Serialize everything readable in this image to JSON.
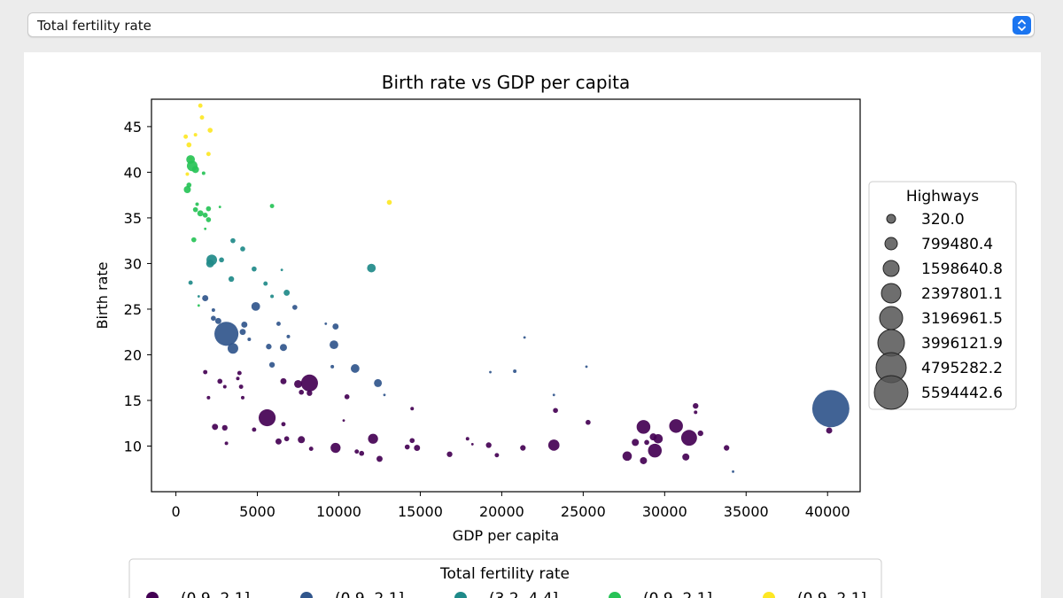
{
  "selector": {
    "selected": "Total fertility rate"
  },
  "colors": {
    "purple": "#440154",
    "blue": "#31568c",
    "teal": "#1f8a89",
    "green": "#27c357",
    "yellow": "#fde725",
    "accent": "#1b75f0"
  },
  "chart_data": {
    "type": "scatter",
    "title": "Birth rate vs GDP per capita",
    "xlabel": "GDP per capita",
    "ylabel": "Birth rate",
    "xlim": [
      -1500,
      42000
    ],
    "ylim": [
      5,
      48
    ],
    "xticks": [
      0,
      5000,
      10000,
      15000,
      20000,
      25000,
      30000,
      35000,
      40000
    ],
    "yticks": [
      10,
      15,
      20,
      25,
      30,
      35,
      40,
      45
    ],
    "grid": false,
    "size_legend": {
      "title": "Highways",
      "placement": "right",
      "entries": [
        "320.0",
        "799480.4",
        "1598640.8",
        "2397801.1",
        "3196961.5",
        "3996121.9",
        "4795282.2",
        "5594442.6"
      ]
    },
    "color_legend": {
      "title": "Total fertility rate",
      "placement": "bottom",
      "entries": [
        {
          "label": "(0.9, 2.1]",
          "color": "purple"
        },
        {
          "label": "(0.9, 2.1]",
          "color": "blue"
        },
        {
          "label": "(3.2, 4.4]",
          "color": "teal"
        },
        {
          "label": "(0.9, 2.1]",
          "color": "green"
        },
        {
          "label": "(0.9, 2.1]",
          "color": "yellow"
        }
      ]
    },
    "series": [
      {
        "color": "yellow",
        "points": [
          {
            "x": 1500,
            "y": 47.3,
            "size": 15000
          },
          {
            "x": 1600,
            "y": 46.0,
            "size": 15000
          },
          {
            "x": 2100,
            "y": 44.6,
            "size": 20000
          },
          {
            "x": 600,
            "y": 43.9,
            "size": 15000
          },
          {
            "x": 1200,
            "y": 44.1,
            "size": 10000
          },
          {
            "x": 800,
            "y": 43.0,
            "size": 20000
          },
          {
            "x": 2000,
            "y": 42.0,
            "size": 15000
          },
          {
            "x": 900,
            "y": 41.5,
            "size": 10000
          },
          {
            "x": 700,
            "y": 39.8,
            "size": 10000
          },
          {
            "x": 13100,
            "y": 36.7,
            "size": 20000
          }
        ]
      },
      {
        "color": "green",
        "points": [
          {
            "x": 900,
            "y": 41.4,
            "size": 60000
          },
          {
            "x": 1000,
            "y": 40.7,
            "size": 90000
          },
          {
            "x": 1200,
            "y": 40.3,
            "size": 40000
          },
          {
            "x": 1700,
            "y": 39.9,
            "size": 10000
          },
          {
            "x": 800,
            "y": 38.6,
            "size": 20000
          },
          {
            "x": 700,
            "y": 38.1,
            "size": 40000
          },
          {
            "x": 1300,
            "y": 36.5,
            "size": 10000
          },
          {
            "x": 2700,
            "y": 36.2,
            "size": 5000
          },
          {
            "x": 5900,
            "y": 36.3,
            "size": 15000
          },
          {
            "x": 1200,
            "y": 35.9,
            "size": 20000
          },
          {
            "x": 2000,
            "y": 36.0,
            "size": 20000
          },
          {
            "x": 1500,
            "y": 35.5,
            "size": 30000
          },
          {
            "x": 1800,
            "y": 35.3,
            "size": 20000
          },
          {
            "x": 2000,
            "y": 34.8,
            "size": 20000
          },
          {
            "x": 1800,
            "y": 33.8,
            "size": 5000
          },
          {
            "x": 1100,
            "y": 32.6,
            "size": 20000
          },
          {
            "x": 1400,
            "y": 25.4,
            "size": 5000
          }
        ]
      },
      {
        "color": "teal",
        "points": [
          {
            "x": 3500,
            "y": 32.5,
            "size": 20000
          },
          {
            "x": 4100,
            "y": 31.6,
            "size": 20000
          },
          {
            "x": 2200,
            "y": 30.4,
            "size": 90000
          },
          {
            "x": 2100,
            "y": 30.0,
            "size": 50000
          },
          {
            "x": 2800,
            "y": 30.4,
            "size": 20000
          },
          {
            "x": 12000,
            "y": 29.5,
            "size": 60000
          },
          {
            "x": 4800,
            "y": 29.4,
            "size": 20000
          },
          {
            "x": 6500,
            "y": 29.3,
            "size": 5000
          },
          {
            "x": 3400,
            "y": 28.3,
            "size": 25000
          },
          {
            "x": 900,
            "y": 27.9,
            "size": 15000
          },
          {
            "x": 5500,
            "y": 27.8,
            "size": 15000
          },
          {
            "x": 6800,
            "y": 26.8,
            "size": 30000
          },
          {
            "x": 1400,
            "y": 26.4,
            "size": 5000
          },
          {
            "x": 5900,
            "y": 26.4,
            "size": 10000
          }
        ]
      },
      {
        "color": "blue",
        "points": [
          {
            "x": 1800,
            "y": 26.2,
            "size": 30000
          },
          {
            "x": 4900,
            "y": 25.3,
            "size": 60000
          },
          {
            "x": 7300,
            "y": 25.2,
            "size": 20000
          },
          {
            "x": 2300,
            "y": 24.9,
            "size": 10000
          },
          {
            "x": 2300,
            "y": 24.0,
            "size": 20000
          },
          {
            "x": 2600,
            "y": 23.7,
            "size": 30000
          },
          {
            "x": 4200,
            "y": 23.3,
            "size": 30000
          },
          {
            "x": 6300,
            "y": 23.4,
            "size": 15000
          },
          {
            "x": 9200,
            "y": 23.4,
            "size": 5000
          },
          {
            "x": 9800,
            "y": 23.1,
            "size": 30000
          },
          {
            "x": 4100,
            "y": 22.5,
            "size": 30000
          },
          {
            "x": 3100,
            "y": 22.3,
            "size": 460000
          },
          {
            "x": 6900,
            "y": 22.0,
            "size": 10000
          },
          {
            "x": 4500,
            "y": 21.7,
            "size": 10000
          },
          {
            "x": 21400,
            "y": 21.9,
            "size": 5000
          },
          {
            "x": 3500,
            "y": 20.7,
            "size": 90000
          },
          {
            "x": 9700,
            "y": 21.1,
            "size": 60000
          },
          {
            "x": 5700,
            "y": 20.9,
            "size": 25000
          },
          {
            "x": 6600,
            "y": 20.8,
            "size": 40000
          },
          {
            "x": 5900,
            "y": 18.9,
            "size": 25000
          },
          {
            "x": 11000,
            "y": 18.5,
            "size": 60000
          },
          {
            "x": 9600,
            "y": 18.7,
            "size": 10000
          },
          {
            "x": 25200,
            "y": 18.7,
            "size": 5000
          },
          {
            "x": 19300,
            "y": 18.1,
            "size": 5000
          },
          {
            "x": 20800,
            "y": 18.2,
            "size": 10000
          },
          {
            "x": 12400,
            "y": 16.9,
            "size": 50000
          },
          {
            "x": 12800,
            "y": 15.6,
            "size": 5000
          },
          {
            "x": 23200,
            "y": 15.6,
            "size": 5000
          },
          {
            "x": 40200,
            "y": 14.1,
            "size": 1100000
          },
          {
            "x": 34200,
            "y": 7.2,
            "size": 5000
          }
        ]
      },
      {
        "color": "purple",
        "points": [
          {
            "x": 1800,
            "y": 18.1,
            "size": 15000
          },
          {
            "x": 3900,
            "y": 18.0,
            "size": 15000
          },
          {
            "x": 3800,
            "y": 17.4,
            "size": 10000
          },
          {
            "x": 2700,
            "y": 17.1,
            "size": 20000
          },
          {
            "x": 6600,
            "y": 17.1,
            "size": 30000
          },
          {
            "x": 7500,
            "y": 16.8,
            "size": 50000
          },
          {
            "x": 8200,
            "y": 16.9,
            "size": 230000
          },
          {
            "x": 3000,
            "y": 16.5,
            "size": 10000
          },
          {
            "x": 4000,
            "y": 16.5,
            "size": 15000
          },
          {
            "x": 7700,
            "y": 15.9,
            "size": 20000
          },
          {
            "x": 8200,
            "y": 15.8,
            "size": 25000
          },
          {
            "x": 2000,
            "y": 15.3,
            "size": 10000
          },
          {
            "x": 4100,
            "y": 15.3,
            "size": 10000
          },
          {
            "x": 10500,
            "y": 15.4,
            "size": 20000
          },
          {
            "x": 14500,
            "y": 14.1,
            "size": 10000
          },
          {
            "x": 23300,
            "y": 13.9,
            "size": 20000
          },
          {
            "x": 31900,
            "y": 14.4,
            "size": 25000
          },
          {
            "x": 31900,
            "y": 13.7,
            "size": 10000
          },
          {
            "x": 5600,
            "y": 13.1,
            "size": 230000
          },
          {
            "x": 10300,
            "y": 12.8,
            "size": 5000
          },
          {
            "x": 25300,
            "y": 12.6,
            "size": 20000
          },
          {
            "x": 28700,
            "y": 12.1,
            "size": 150000
          },
          {
            "x": 30700,
            "y": 12.2,
            "size": 150000
          },
          {
            "x": 2400,
            "y": 12.1,
            "size": 30000
          },
          {
            "x": 3000,
            "y": 12.0,
            "size": 25000
          },
          {
            "x": 4800,
            "y": 11.8,
            "size": 15000
          },
          {
            "x": 6600,
            "y": 12.4,
            "size": 15000
          },
          {
            "x": 40100,
            "y": 11.7,
            "size": 30000
          },
          {
            "x": 32200,
            "y": 11.4,
            "size": 25000
          },
          {
            "x": 29300,
            "y": 11.0,
            "size": 40000
          },
          {
            "x": 29600,
            "y": 10.8,
            "size": 70000
          },
          {
            "x": 31500,
            "y": 10.9,
            "size": 200000
          },
          {
            "x": 12100,
            "y": 10.8,
            "size": 80000
          },
          {
            "x": 7700,
            "y": 10.7,
            "size": 40000
          },
          {
            "x": 6300,
            "y": 10.5,
            "size": 30000
          },
          {
            "x": 6800,
            "y": 10.8,
            "size": 20000
          },
          {
            "x": 14500,
            "y": 10.6,
            "size": 20000
          },
          {
            "x": 17900,
            "y": 10.8,
            "size": 10000
          },
          {
            "x": 28200,
            "y": 10.4,
            "size": 40000
          },
          {
            "x": 28900,
            "y": 10.4,
            "size": 20000
          },
          {
            "x": 3100,
            "y": 10.3,
            "size": 10000
          },
          {
            "x": 9800,
            "y": 9.8,
            "size": 80000
          },
          {
            "x": 8300,
            "y": 9.7,
            "size": 15000
          },
          {
            "x": 14200,
            "y": 9.9,
            "size": 20000
          },
          {
            "x": 14800,
            "y": 9.8,
            "size": 30000
          },
          {
            "x": 18200,
            "y": 10.2,
            "size": 5000
          },
          {
            "x": 19200,
            "y": 10.1,
            "size": 25000
          },
          {
            "x": 21300,
            "y": 9.8,
            "size": 25000
          },
          {
            "x": 23200,
            "y": 10.1,
            "size": 100000
          },
          {
            "x": 33800,
            "y": 9.8,
            "size": 25000
          },
          {
            "x": 29400,
            "y": 9.5,
            "size": 150000
          },
          {
            "x": 11400,
            "y": 9.2,
            "size": 20000
          },
          {
            "x": 16800,
            "y": 9.1,
            "size": 25000
          },
          {
            "x": 19700,
            "y": 9.0,
            "size": 15000
          },
          {
            "x": 11100,
            "y": 9.4,
            "size": 15000
          },
          {
            "x": 27700,
            "y": 8.9,
            "size": 70000
          },
          {
            "x": 31300,
            "y": 8.8,
            "size": 40000
          },
          {
            "x": 12500,
            "y": 8.6,
            "size": 30000
          },
          {
            "x": 28700,
            "y": 8.4,
            "size": 40000
          }
        ]
      }
    ]
  }
}
